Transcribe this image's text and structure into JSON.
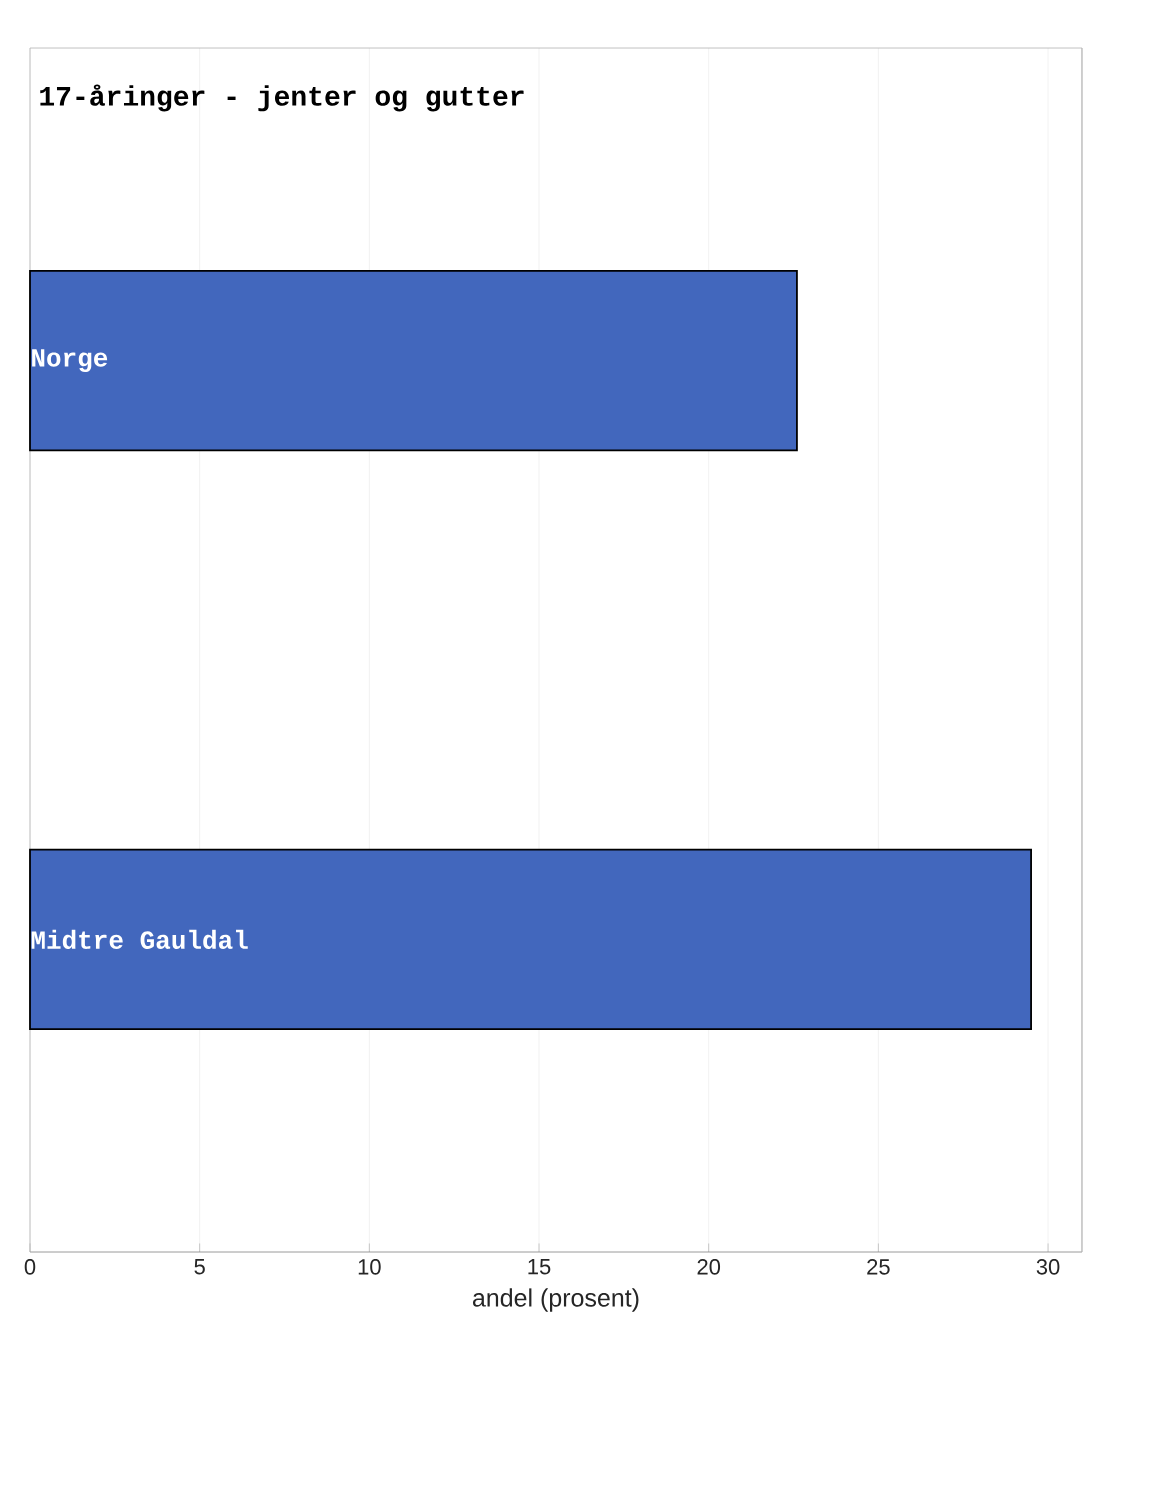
{
  "chart_data": {
    "type": "bar",
    "orientation": "horizontal",
    "title": "17-åringer - jenter og gutter",
    "xlabel": "andel (prosent)",
    "categories": [
      "Norge",
      "Midtre Gauldal"
    ],
    "values": [
      22.6,
      29.5
    ],
    "color": "#4267bd",
    "xlim": [
      0,
      31
    ],
    "xticks": [
      0,
      5,
      10,
      15,
      20,
      25,
      30
    ],
    "grid": "x"
  }
}
